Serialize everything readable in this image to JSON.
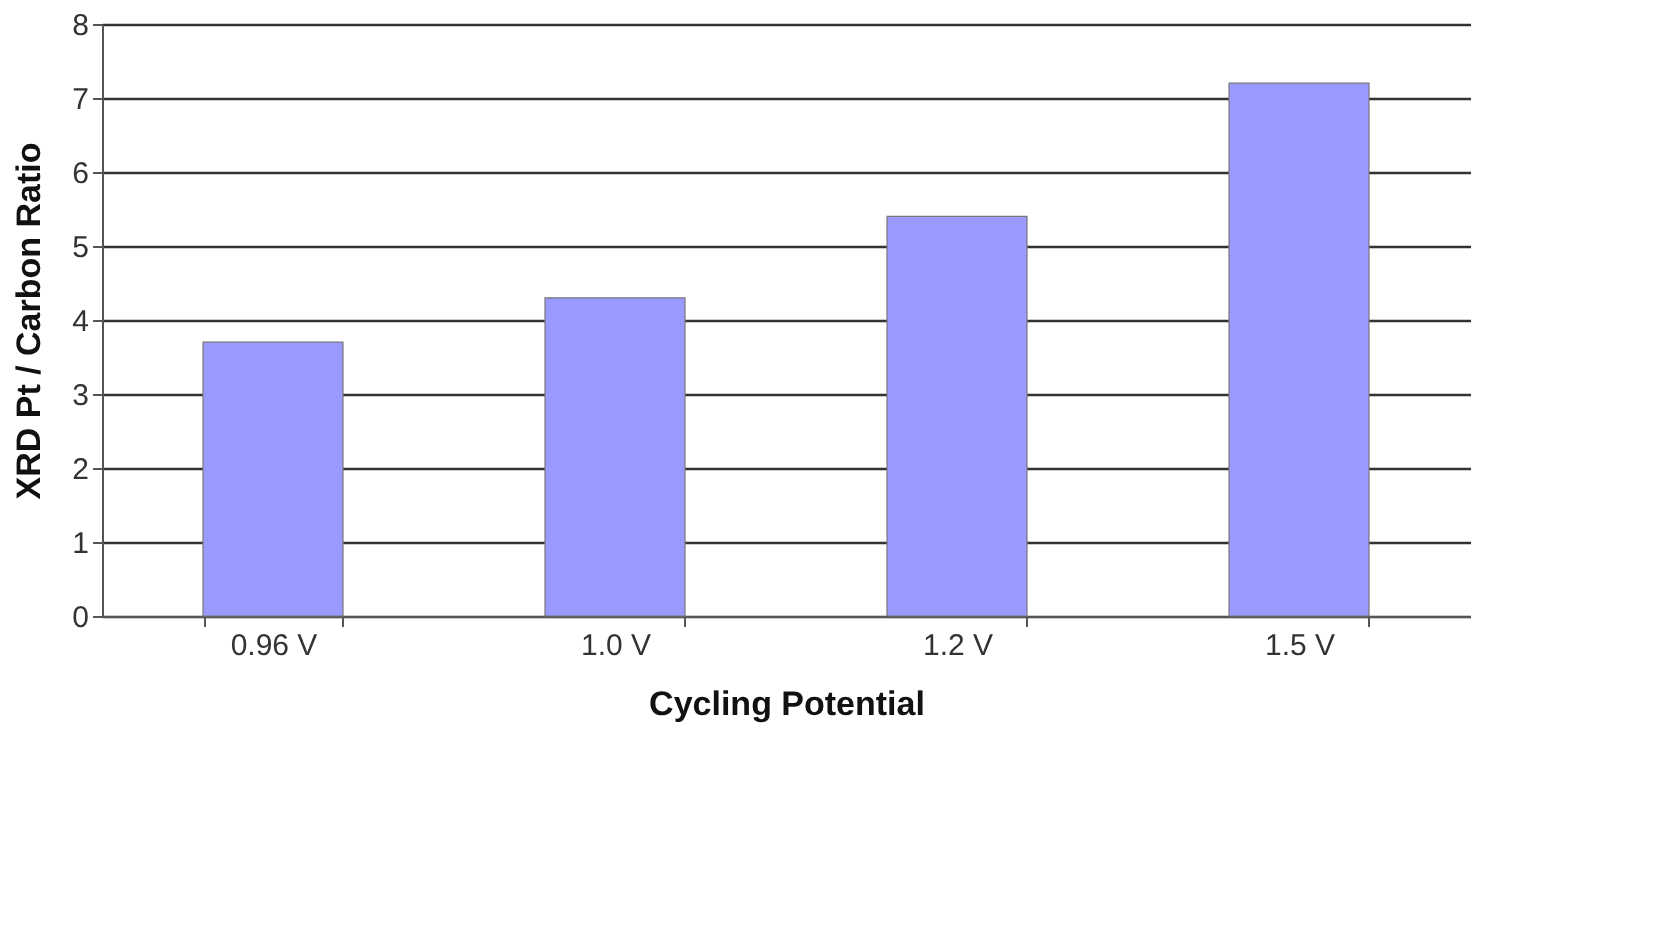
{
  "chart_data": {
    "type": "bar",
    "xlabel": "Cycling Potential",
    "ylabel": "XRD Pt / Carbon Ratio",
    "categories": [
      "0.96 V",
      "1.0 V",
      "1.2 V",
      "1.5 V"
    ],
    "values": [
      3.7,
      4.3,
      5.4,
      7.2
    ],
    "color": "#9999ff",
    "ylim": [
      0,
      8
    ],
    "yticks": [
      0,
      1,
      2,
      3,
      4,
      5,
      6,
      7,
      8
    ],
    "grid": "y"
  }
}
